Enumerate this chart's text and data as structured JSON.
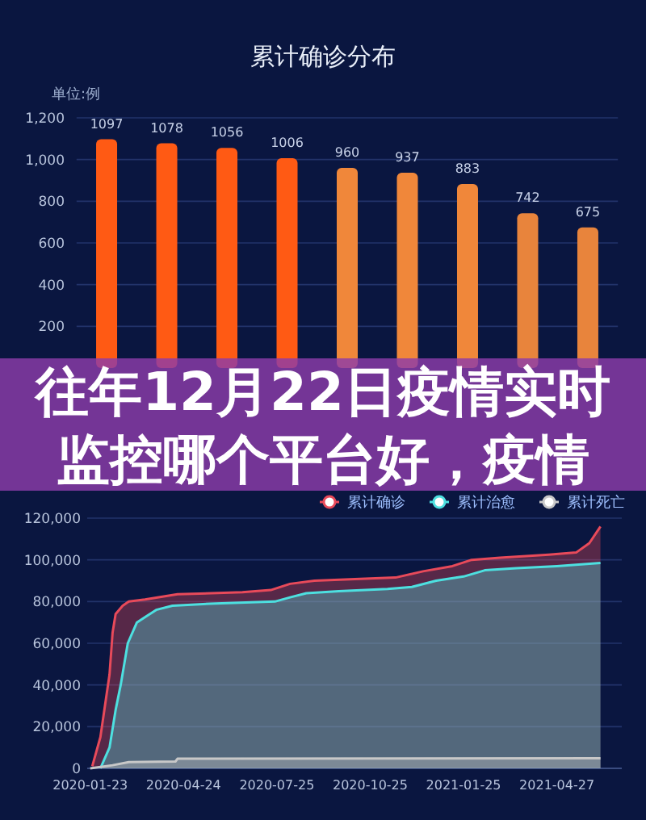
{
  "chart_data": [
    {
      "type": "bar",
      "title": "累计确诊分布",
      "ylabel": "单位:例",
      "categories": [
        null,
        null,
        null,
        null,
        null,
        null,
        null,
        null,
        null
      ],
      "values": [
        1097,
        1078,
        1056,
        1006,
        960,
        937,
        883,
        742,
        675
      ],
      "colors": [
        "#ff5a14",
        "#ff5a14",
        "#ff5a14",
        "#ff5a14",
        "#f0873a",
        "#f0873a",
        "#f0873a",
        "#e8843c",
        "#e8843c"
      ],
      "ylim": [
        0,
        1200
      ],
      "yticks": [
        200,
        400,
        {
          "value": 600,
          "label": "600"
        },
        {
          "value": 800,
          "label": "800"
        },
        {
          "value": 1000,
          "label": "1,000"
        },
        {
          "value": 1200,
          "label": "1,200"
        }
      ],
      "data_labels": true,
      "grid": "y",
      "annotations": [
        "往年12月22日疫情实时监控哪个平台好，疫情"
      ]
    },
    {
      "type": "area",
      "xlim": [
        "2020-01-20",
        "2021-06-30"
      ],
      "ylim": [
        0,
        120000
      ],
      "xticks": [
        "2020-01-23",
        "2020-04-24",
        "2020-07-25",
        "2020-10-25",
        "2021-01-25",
        "2021-04-27"
      ],
      "yticks": [
        0,
        {
          "value": 20000,
          "label": "20,000"
        },
        {
          "value": 40000,
          "label": "40,000"
        },
        {
          "value": 60000,
          "label": "60,000"
        },
        {
          "value": 80000,
          "label": "80,000"
        },
        {
          "value": 100000,
          "label": "100,000"
        },
        {
          "value": 120000,
          "label": "120,000"
        }
      ],
      "legend": "top right",
      "grid": "y",
      "series": [
        {
          "name": "累计确诊",
          "color": "#e84a5a",
          "x": [
            "2020-01-25",
            "2020-02-02",
            "2020-02-08",
            "2020-02-11",
            "2020-02-14",
            "2020-02-17",
            "2020-02-24",
            "2020-03-01",
            "2020-03-17",
            "2020-04-18",
            "2020-06-21",
            "2020-07-19",
            "2020-08-07",
            "2020-08-31",
            "2020-11-19",
            "2020-12-16",
            "2021-01-14",
            "2021-02-02",
            "2021-03-02",
            "2021-04-19",
            "2021-05-16",
            "2021-05-29",
            "2021-06-09"
          ],
          "values": [
            1000,
            15000,
            35000,
            45000,
            65000,
            74000,
            78000,
            80000,
            81000,
            83500,
            84500,
            85500,
            88500,
            90000,
            91500,
            94500,
            97000,
            100000,
            101000,
            102500,
            103500,
            108000,
            116000
          ]
        },
        {
          "name": "累计治愈",
          "color": "#4de0e0",
          "x": [
            "2020-02-02",
            "2020-02-11",
            "2020-02-17",
            "2020-02-22",
            "2020-02-29",
            "2020-03-09",
            "2020-03-28",
            "2020-04-13",
            "2020-05-20",
            "2020-07-23",
            "2020-08-07",
            "2020-08-23",
            "2020-09-24",
            "2020-11-11",
            "2020-12-05",
            "2020-12-29",
            "2021-01-25",
            "2021-02-15",
            "2021-03-18",
            "2021-04-27",
            "2021-06-09"
          ],
          "values": [
            0,
            10000,
            28000,
            40000,
            60000,
            70000,
            76000,
            78000,
            79000,
            80000,
            82000,
            84000,
            85000,
            86000,
            87000,
            90000,
            92000,
            95000,
            96000,
            97000,
            98500
          ]
        },
        {
          "name": "累计死亡",
          "color": "#c8c8c8",
          "x": [
            "2020-01-23",
            "2020-02-14",
            "2020-03-01",
            "2020-04-16",
            "2020-04-18",
            "2021-06-09"
          ],
          "values": [
            0,
            1500,
            3000,
            3300,
            4600,
            4800
          ]
        }
      ]
    }
  ]
}
